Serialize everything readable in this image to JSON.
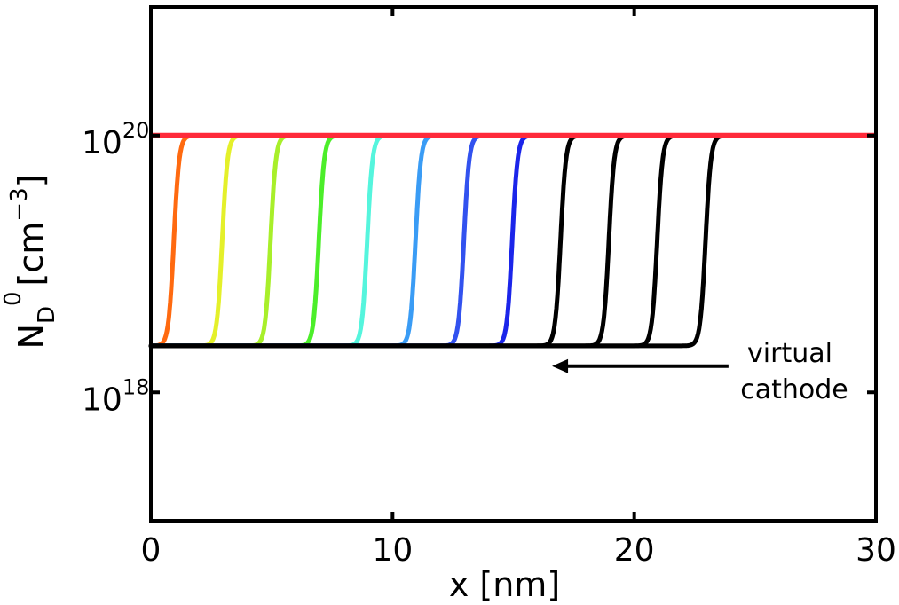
{
  "chart_data": {
    "type": "line",
    "title": "",
    "xlabel": "x [nm]",
    "ylabel": {
      "main": "N",
      "sub": "D",
      "sup": "0",
      "unit": "[cm",
      "unit_sup": "−3",
      "unit_close": "]"
    },
    "xlim": [
      0,
      30
    ],
    "ylim": [
      1e+17,
      1e+21
    ],
    "yscale": "log",
    "xticks": [
      {
        "value": 0,
        "label": "0"
      },
      {
        "value": 10,
        "label": "10"
      },
      {
        "value": 20,
        "label": "20"
      },
      {
        "value": 30,
        "label": "30"
      }
    ],
    "yticks": [
      {
        "value": 1e+18,
        "base": "10",
        "exp": "18"
      },
      {
        "value": 1e+20,
        "base": "10",
        "exp": "20"
      }
    ],
    "grid": false,
    "reference_line": {
      "y": 1e+20,
      "color": "#ff2a3a"
    },
    "profile": {
      "low_value": 2.3e+18,
      "high_value": 1e+20
    },
    "series": [
      {
        "step_x": 1.2,
        "color": "#ff6a10"
      },
      {
        "step_x": 3.2,
        "color": "#e4f02a"
      },
      {
        "step_x": 5.2,
        "color": "#a8ef2a"
      },
      {
        "step_x": 7.2,
        "color": "#4cee2a"
      },
      {
        "step_x": 9.2,
        "color": "#55f5dd"
      },
      {
        "step_x": 11.2,
        "color": "#3a9cf5"
      },
      {
        "step_x": 13.2,
        "color": "#3252ef"
      },
      {
        "step_x": 15.2,
        "color": "#1b25ea"
      },
      {
        "step_x": 17.2,
        "color": "#000000"
      },
      {
        "step_x": 19.2,
        "color": "#000000"
      },
      {
        "step_x": 21.2,
        "color": "#000000"
      },
      {
        "step_x": 23.2,
        "color": "#000000"
      }
    ],
    "annotation": {
      "lines": [
        "virtual",
        "cathode"
      ],
      "arrow_from": [
        23.9,
        1.6e+18
      ],
      "arrow_to": [
        16.6,
        1.6e+18
      ]
    }
  }
}
